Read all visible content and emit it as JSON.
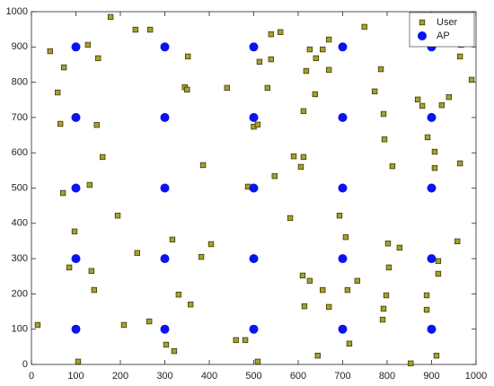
{
  "chart_data": {
    "type": "scatter",
    "xlim": [
      0,
      1000
    ],
    "ylim": [
      0,
      1000
    ],
    "xticks": [
      0,
      100,
      200,
      300,
      400,
      500,
      600,
      700,
      800,
      900,
      1000
    ],
    "yticks": [
      0,
      100,
      200,
      300,
      400,
      500,
      600,
      700,
      800,
      900,
      1000
    ],
    "grid": false,
    "legend": "upper right",
    "series": [
      {
        "name": "User",
        "color": "#a8a02a",
        "edge": "#3a3a10",
        "marker": "square",
        "x": [
          178,
          234,
          267,
          42,
          127,
          150,
          73,
          59,
          65,
          147,
          160,
          71,
          131,
          194,
          97,
          85,
          135,
          141,
          14,
          105,
          208,
          238,
          317,
          265,
          303,
          321,
          331,
          358,
          382,
          404,
          386,
          345,
          350,
          352,
          440,
          460,
          481,
          509,
          487,
          500,
          509,
          513,
          539,
          560,
          539,
          531,
          547,
          582,
          590,
          606,
          612,
          612,
          618,
          626,
          640,
          655,
          669,
          669,
          638,
          610,
          626,
          655,
          669,
          614,
          644,
          715,
          707,
          711,
          733,
          693,
          749,
          772,
          786,
          792,
          794,
          812,
          802,
          828,
          804,
          798,
          792,
          790,
          853,
          869,
          879,
          923,
          939,
          891,
          907,
          907,
          964,
          958,
          915,
          915,
          889,
          889,
          911,
          966,
          964,
          990
        ],
        "y": [
          985,
          949,
          949,
          888,
          906,
          868,
          842,
          771,
          682,
          679,
          588,
          486,
          509,
          422,
          377,
          275,
          265,
          211,
          112,
          8,
          112,
          316,
          354,
          122,
          56,
          38,
          198,
          170,
          305,
          341,
          565,
          786,
          779,
          873,
          784,
          69,
          69,
          8,
          504,
          674,
          680,
          858,
          936,
          942,
          865,
          784,
          534,
          415,
          590,
          560,
          588,
          718,
          832,
          893,
          868,
          893,
          921,
          835,
          766,
          252,
          237,
          211,
          163,
          165,
          25,
          59,
          361,
          211,
          237,
          422,
          957,
          774,
          837,
          710,
          638,
          562,
          343,
          331,
          275,
          196,
          158,
          127,
          3,
          751,
          733,
          735,
          758,
          644,
          603,
          557,
          570,
          349,
          293,
          257,
          196,
          155,
          25,
          906,
          873,
          807
        ]
      },
      {
        "name": "AP",
        "color": "#0a14f0",
        "marker": "circle",
        "x": [
          100,
          100,
          100,
          100,
          100,
          300,
          300,
          300,
          300,
          300,
          500,
          500,
          500,
          500,
          500,
          700,
          700,
          700,
          700,
          700,
          900,
          900,
          900,
          900,
          900
        ],
        "y": [
          100,
          300,
          500,
          700,
          900,
          100,
          300,
          500,
          700,
          900,
          100,
          300,
          500,
          700,
          900,
          100,
          300,
          500,
          700,
          900,
          100,
          300,
          500,
          700,
          900
        ]
      }
    ]
  }
}
